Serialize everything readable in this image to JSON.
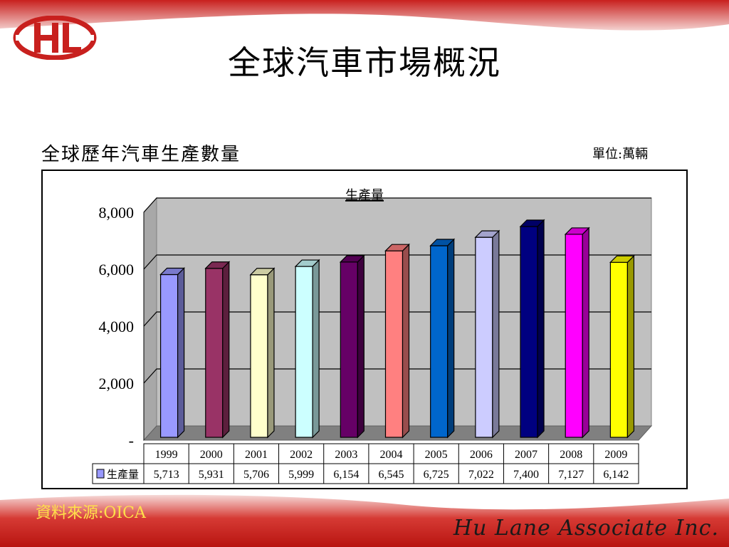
{
  "slide": {
    "title": "全球汽車市場概況",
    "subtitle": "全球歷年汽車生產數量",
    "unit": "單位:萬輛",
    "source": "資料來源:OICA",
    "company": "Hu Lane Associate Inc.",
    "brand_colors": {
      "red": "#c8201e",
      "gold": "#ffe04a"
    }
  },
  "chart_data": {
    "type": "bar",
    "title": "生產量",
    "categories": [
      "1999",
      "2000",
      "2001",
      "2002",
      "2003",
      "2004",
      "2005",
      "2006",
      "2007",
      "2008",
      "2009"
    ],
    "series": [
      {
        "name": "生產量",
        "values": [
          5713,
          5931,
          5706,
          5999,
          6154,
          6545,
          6725,
          7022,
          7400,
          7127,
          6142
        ]
      }
    ],
    "value_labels": [
      "5,713",
      "5,931",
      "5,706",
      "5,999",
      "6,154",
      "6,545",
      "6,725",
      "7,022",
      "7,400",
      "7,127",
      "6,142"
    ],
    "bar_colors": [
      "#9999ff",
      "#993366",
      "#ffffcc",
      "#ccffff",
      "#660066",
      "#ff8080",
      "#0066cc",
      "#ccccff",
      "#000080",
      "#ff00ff",
      "#ffff00"
    ],
    "y_ticks": [
      "-",
      "2,000",
      "4,000",
      "6,000",
      "8,000"
    ],
    "ylim": [
      0,
      8000
    ],
    "grid": true,
    "legend_position": "data-table",
    "legend_label": "生產量"
  }
}
